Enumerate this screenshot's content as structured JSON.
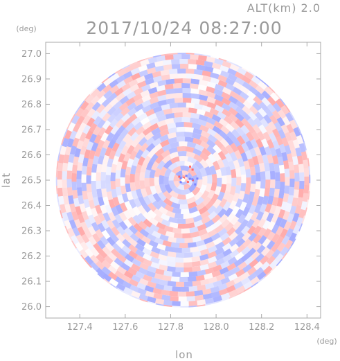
{
  "chart_data": {
    "type": "heatmap",
    "title": "2017/10/24 08:27:00",
    "subtitle": "ALT(km) 2.0",
    "xlabel": "lon",
    "ylabel": "lat",
    "x_unit": "(deg)",
    "y_unit": "(deg)",
    "xlim": [
      127.25,
      128.46
    ],
    "ylim": [
      25.955,
      27.045
    ],
    "x_ticks": [
      "127.4",
      "127.6",
      "127.8",
      "128.0",
      "128.2",
      "128.4"
    ],
    "y_ticks": [
      "26.0",
      "26.1",
      "26.2",
      "26.3",
      "26.4",
      "26.5",
      "26.6",
      "26.7",
      "26.8",
      "26.9",
      "27.0"
    ],
    "radar_center": {
      "lon": 127.855,
      "lat": 26.5
    },
    "radar_range_deg": 0.56,
    "colormap": {
      "negative": "#9aa3ff",
      "neutral": "#ffffff",
      "positive": "#ff9f9f"
    },
    "grid": false,
    "legend": "none"
  }
}
